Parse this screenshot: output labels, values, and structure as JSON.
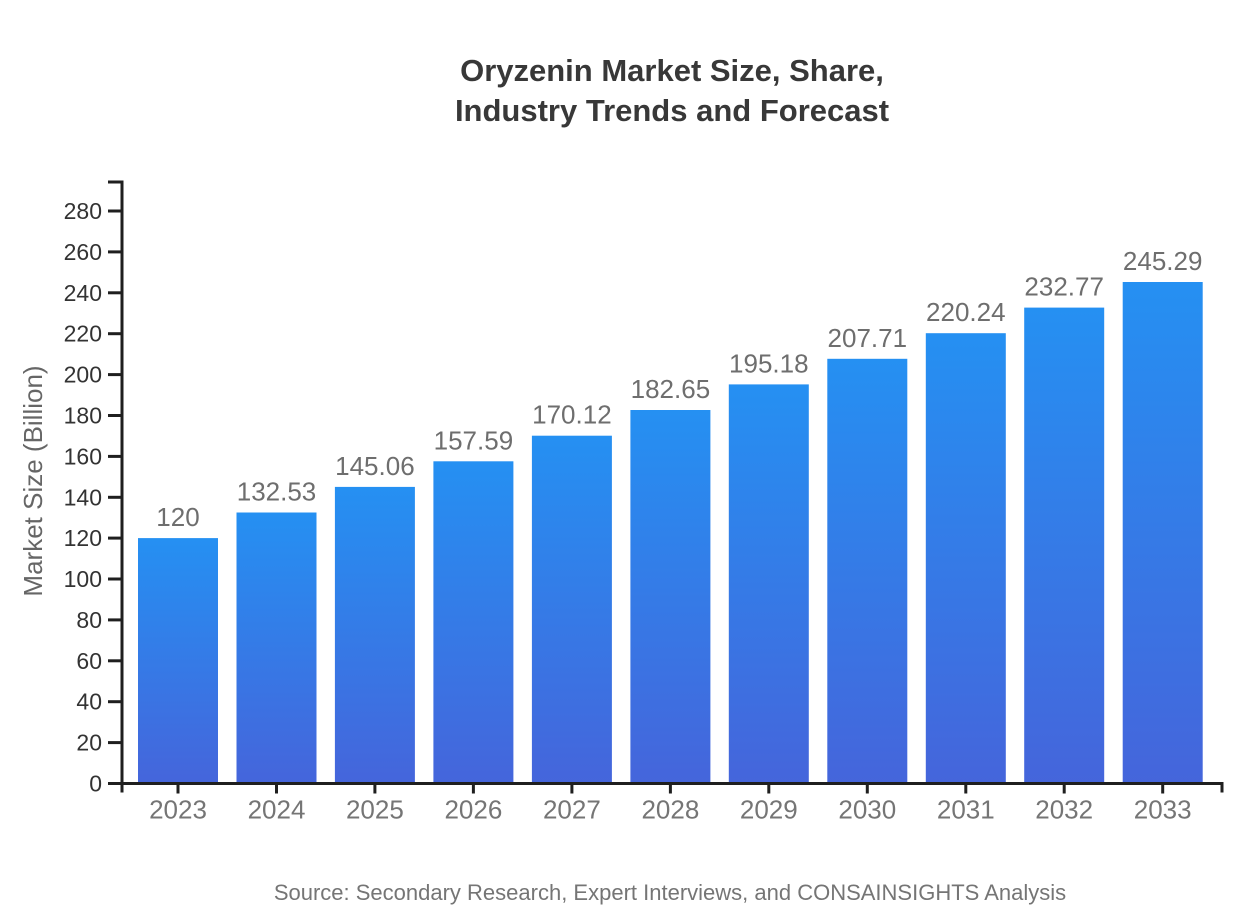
{
  "page": {
    "background": "#ffffff"
  },
  "chart_data": {
    "type": "bar",
    "title_lines": [
      "Oryzenin Market Size, Share,",
      "Industry Trends and Forecast"
    ],
    "ylabel": "Market Size (Billion)",
    "xlabel": "",
    "categories": [
      "2023",
      "2024",
      "2025",
      "2026",
      "2027",
      "2028",
      "2029",
      "2030",
      "2031",
      "2032",
      "2033"
    ],
    "values": [
      120,
      132.53,
      145.06,
      157.59,
      170.12,
      182.65,
      195.18,
      207.71,
      220.24,
      232.77,
      245.29
    ],
    "value_labels": [
      "120",
      "132.53",
      "145.06",
      "157.59",
      "170.12",
      "182.65",
      "195.18",
      "207.71",
      "220.24",
      "232.77",
      "245.29"
    ],
    "yticks": [
      0,
      20,
      40,
      60,
      80,
      100,
      120,
      140,
      160,
      180,
      200,
      220,
      240,
      260,
      280
    ],
    "ylim": [
      0,
      294
    ],
    "grid": false,
    "legend_position": "none",
    "colors": {
      "bar_gradient_top": "#2590F2",
      "bar_gradient_bottom": "#4565DB",
      "axis": "#1f1f1f",
      "ytick_label": "#333333",
      "xtick_label": "#757575",
      "value_label": "#6e6e6e",
      "title": "#383838",
      "ylabel": "#666666",
      "source": "#757575"
    }
  },
  "footer": {
    "source_text": "Source: Secondary Research, Expert Interviews, and CONSAINSIGHTS Analysis"
  }
}
